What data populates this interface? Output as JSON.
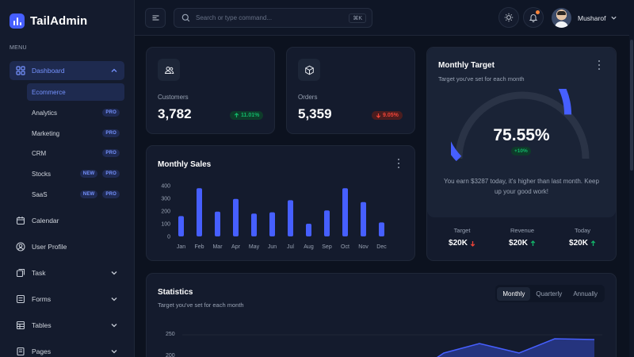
{
  "brand": {
    "name": "TailAdmin",
    "accent": "#465fff"
  },
  "sidebar": {
    "menu_label": "MENU",
    "items": [
      {
        "label": "Dashboard",
        "icon": "grid-icon",
        "expanded": true
      },
      {
        "label": "Calendar",
        "icon": "calendar-icon"
      },
      {
        "label": "User Profile",
        "icon": "user-circle-icon"
      },
      {
        "label": "Task",
        "icon": "task-icon"
      },
      {
        "label": "Forms",
        "icon": "forms-icon"
      },
      {
        "label": "Tables",
        "icon": "table-icon"
      },
      {
        "label": "Pages",
        "icon": "pages-icon"
      }
    ],
    "dashboard_sub": [
      {
        "label": "Ecommerce",
        "badges": []
      },
      {
        "label": "Analytics",
        "badges": [
          "PRO"
        ]
      },
      {
        "label": "Marketing",
        "badges": [
          "PRO"
        ]
      },
      {
        "label": "CRM",
        "badges": [
          "PRO"
        ]
      },
      {
        "label": "Stocks",
        "badges": [
          "NEW",
          "PRO"
        ]
      },
      {
        "label": "SaaS",
        "badges": [
          "NEW",
          "PRO"
        ]
      }
    ]
  },
  "header": {
    "search_placeholder": "Search or type command...",
    "search_shortcut": "⌘K",
    "user_name": "Musharof"
  },
  "metrics": {
    "customers": {
      "label": "Customers",
      "value": "3,782",
      "change": "11.01%",
      "direction": "up"
    },
    "orders": {
      "label": "Orders",
      "value": "5,359",
      "change": "9.05%",
      "direction": "down"
    }
  },
  "monthly_sales": {
    "title": "Monthly Sales"
  },
  "target": {
    "title": "Monthly Target",
    "subtitle": "Target you've set for each month",
    "percent_label": "75.55%",
    "percent": 75.55,
    "delta": "+10%",
    "message": "You earn $3287 today, it's higher than last month. Keep up your good work!",
    "footer": [
      {
        "label": "Target",
        "value": "$20K",
        "direction": "down"
      },
      {
        "label": "Revenue",
        "value": "$20K",
        "direction": "up"
      },
      {
        "label": "Today",
        "value": "$20K",
        "direction": "up"
      }
    ]
  },
  "statistics": {
    "title": "Statistics",
    "subtitle": "Target you've set for each month",
    "tabs": [
      "Monthly",
      "Quarterly",
      "Annually"
    ],
    "active_tab": "Monthly",
    "y_ticks": [
      "250",
      "200"
    ]
  },
  "chart_data": [
    {
      "type": "bar",
      "title": "Monthly Sales",
      "categories": [
        "Jan",
        "Feb",
        "Mar",
        "Apr",
        "May",
        "Jun",
        "Jul",
        "Aug",
        "Sep",
        "Oct",
        "Nov",
        "Dec"
      ],
      "values": [
        160,
        380,
        195,
        295,
        180,
        190,
        285,
        100,
        205,
        380,
        270,
        110
      ],
      "y_ticks": [
        0,
        100,
        200,
        300,
        400
      ],
      "ylim": [
        0,
        400
      ],
      "color": "#465fff"
    },
    {
      "type": "area",
      "title": "Statistics",
      "y_ticks": [
        200,
        250
      ],
      "color": "#465fff"
    }
  ]
}
